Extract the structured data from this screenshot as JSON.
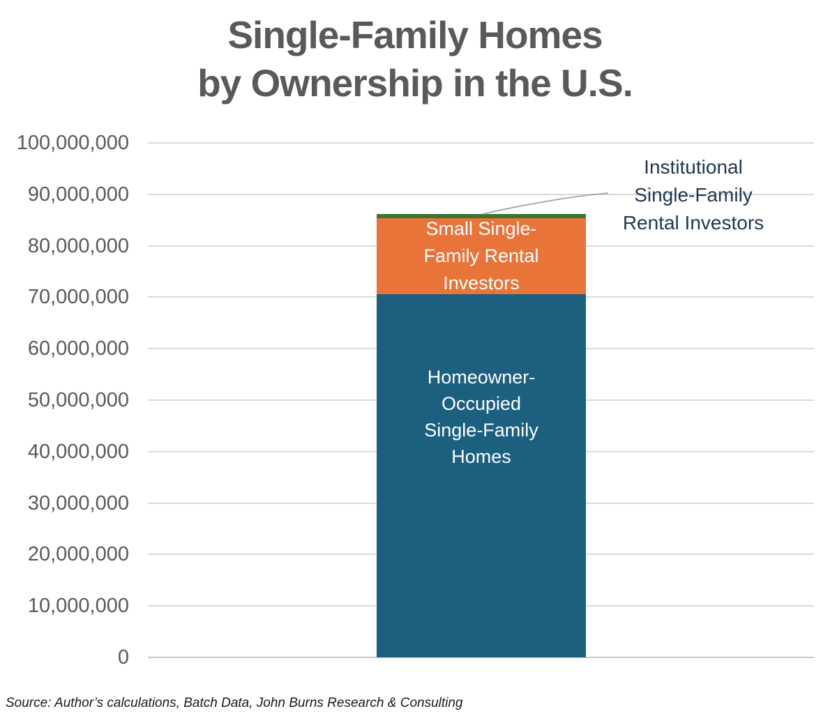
{
  "title": {
    "line1": "Single-Family Homes",
    "line2": "by Ownership in the U.S."
  },
  "annotation": {
    "lines": [
      "Institutional",
      "Single-Family",
      "Rental Investors"
    ]
  },
  "source_note": "Source: Author’s calculations, Batch Data, John Burns Research & Consulting",
  "chart_data": {
    "type": "bar",
    "stacked": true,
    "title": "Single-Family Homes by Ownership in the U.S.",
    "categories": [
      "Single-Family Homes"
    ],
    "series": [
      {
        "key": "homeowner_occupied",
        "name": "Homeowner-Occupied Single-Family Homes",
        "values": [
          70600000
        ],
        "color": "#1c5f7f",
        "label_lines": [
          "Homeowner-",
          "Occupied",
          "Single-Family",
          "Homes"
        ]
      },
      {
        "key": "small_investors",
        "name": "Small Single-Family Rental Investors",
        "values": [
          14700000
        ],
        "color": "#e8743a",
        "label_lines": [
          "Small Single-",
          "Family Rental",
          "Investors"
        ]
      },
      {
        "key": "institutional_investors",
        "name": "Institutional Single-Family Rental Investors",
        "values": [
          900000
        ],
        "color": "#37762f",
        "label_lines": []
      }
    ],
    "xlabel": "",
    "ylabel": "",
    "ylim": [
      0,
      100000000
    ],
    "grid": true,
    "legend": "none (segments labeled directly; institutional segment labeled via callout annotation)",
    "yticks": [
      {
        "value": 0,
        "label": "0"
      },
      {
        "value": 10000000,
        "label": "10,000,000"
      },
      {
        "value": 20000000,
        "label": "20,000,000"
      },
      {
        "value": 30000000,
        "label": "30,000,000"
      },
      {
        "value": 40000000,
        "label": "40,000,000"
      },
      {
        "value": 50000000,
        "label": "50,000,000"
      },
      {
        "value": 60000000,
        "label": "60,000,000"
      },
      {
        "value": 70000000,
        "label": "70,000,000"
      },
      {
        "value": 80000000,
        "label": "80,000,000"
      },
      {
        "value": 90000000,
        "label": "90,000,000"
      },
      {
        "value": 100000000,
        "label": "100,000,000"
      }
    ],
    "colors": {
      "homeowner_occupied": "#1c5f7f",
      "small_investors": "#e8743a",
      "institutional_investors": "#37762f",
      "title_text": "#595959",
      "axis_text": "#595959",
      "gridline": "#dadada",
      "annotation_text": "#1f3750",
      "leader_line": "#a3a3a3"
    }
  }
}
